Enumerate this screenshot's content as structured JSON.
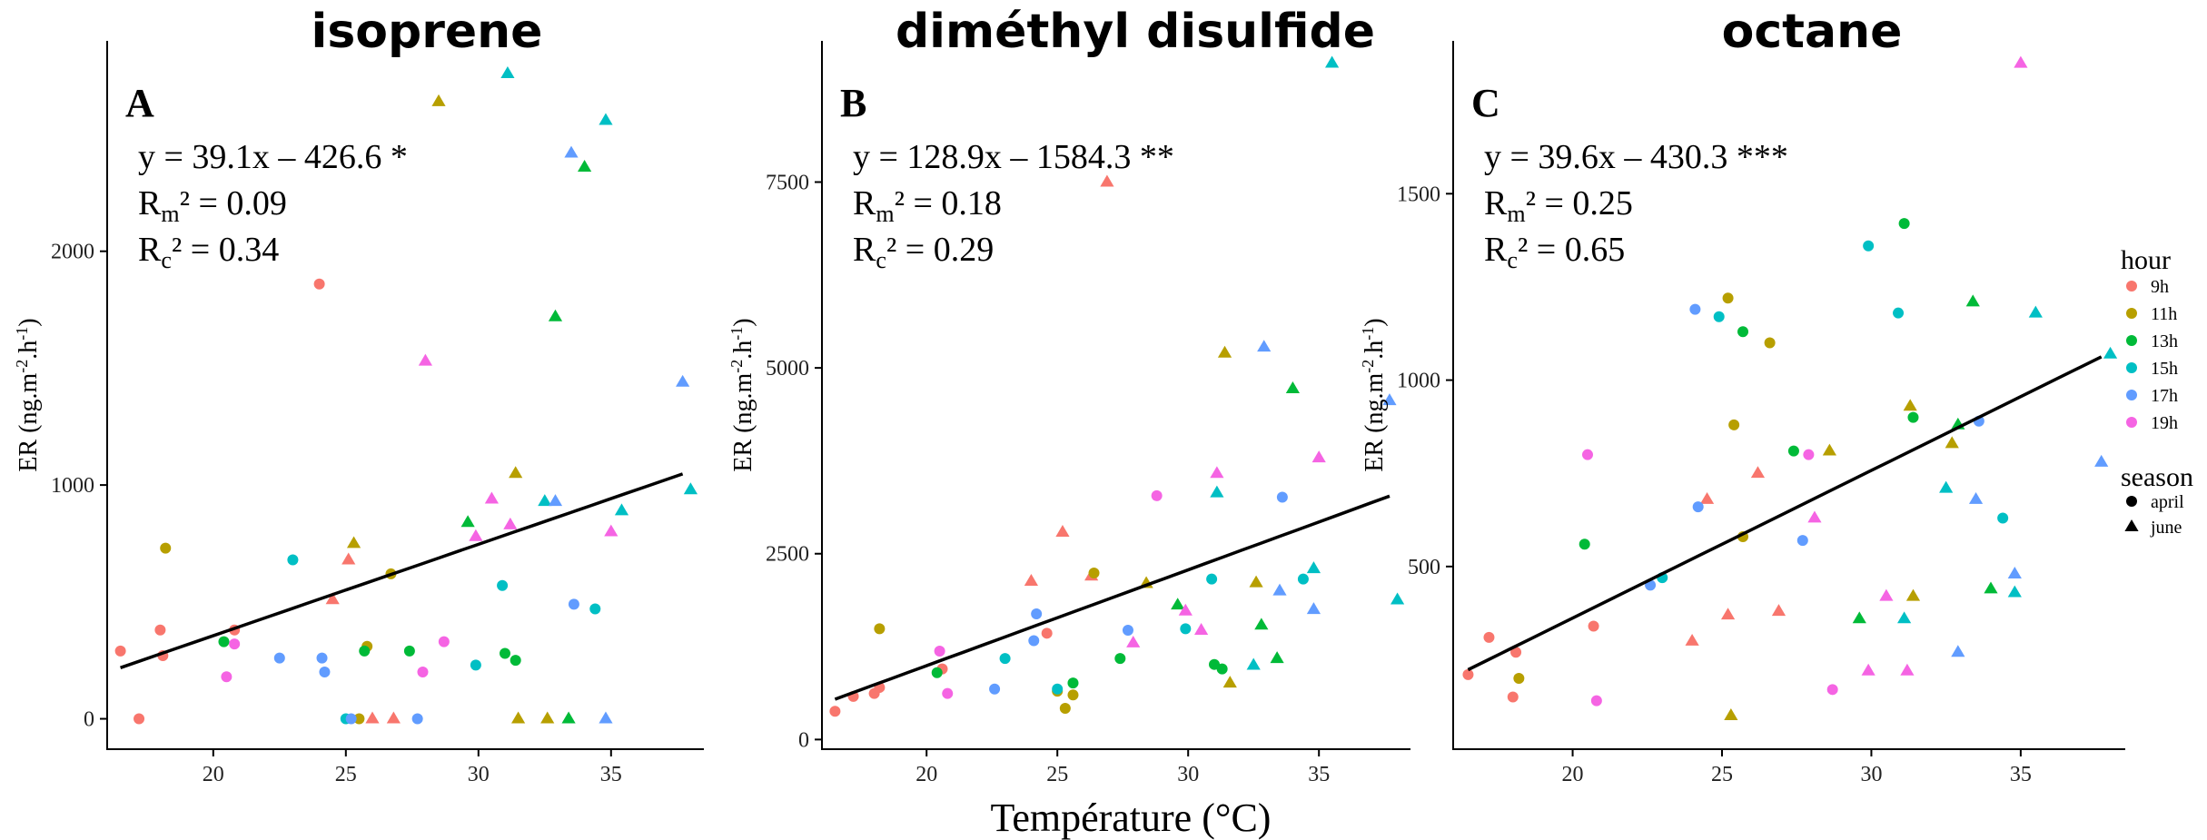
{
  "chart_data": {
    "xlabel": "Température (°C)",
    "legend": {
      "placement": "right",
      "hour": {
        "title": "hour",
        "items": [
          {
            "label": "9h",
            "color": "#F8766D"
          },
          {
            "label": "11h",
            "color": "#B79F00"
          },
          {
            "label": "13h",
            "color": "#00BA38"
          },
          {
            "label": "15h",
            "color": "#00BFC4"
          },
          {
            "label": "17h",
            "color": "#619CFF"
          },
          {
            "label": "19h",
            "color": "#F564E3"
          }
        ]
      },
      "season": {
        "title": "season",
        "items": [
          {
            "label": "april",
            "shape": "circle"
          },
          {
            "label": "june",
            "shape": "triangle"
          }
        ]
      }
    },
    "panels": [
      {
        "type": "scatter",
        "letter": "A",
        "title": "isoprene",
        "ylabel": "ER (ng.m-2.h-1)",
        "xlim": [
          16,
          38.5
        ],
        "ylim": [
          -130,
          2900
        ],
        "xticks": [
          20,
          25,
          30,
          35
        ],
        "yticks": [
          0,
          1000,
          2000
        ],
        "fit": {
          "slope": 39.1,
          "intercept": -426.6,
          "x_range": [
            16.5,
            37.7
          ]
        },
        "annotation": {
          "eq": "y = 39.1x – 426.6 *",
          "rm": "0.09",
          "rc": "0.34"
        },
        "points": [
          [
            16.5,
            290,
            "9h",
            "april"
          ],
          [
            17.2,
            0,
            "9h",
            "april"
          ],
          [
            18.0,
            380,
            "9h",
            "april"
          ],
          [
            18.1,
            270,
            "9h",
            "april"
          ],
          [
            20.8,
            380,
            "9h",
            "april"
          ],
          [
            24.0,
            1860,
            "9h",
            "april"
          ],
          [
            24.5,
            510,
            "9h",
            "june"
          ],
          [
            25.1,
            680,
            "9h",
            "june"
          ],
          [
            26.0,
            0,
            "9h",
            "june"
          ],
          [
            26.8,
            0,
            "9h",
            "june"
          ],
          [
            18.2,
            730,
            "11h",
            "april"
          ],
          [
            25.3,
            750,
            "11h",
            "june"
          ],
          [
            25.5,
            0,
            "11h",
            "april"
          ],
          [
            25.8,
            310,
            "11h",
            "april"
          ],
          [
            26.7,
            620,
            "11h",
            "april"
          ],
          [
            28.5,
            2640,
            "11h",
            "june"
          ],
          [
            31.4,
            1050,
            "11h",
            "june"
          ],
          [
            31.5,
            0,
            "11h",
            "june"
          ],
          [
            32.6,
            0,
            "11h",
            "june"
          ],
          [
            20.4,
            330,
            "13h",
            "april"
          ],
          [
            25.7,
            290,
            "13h",
            "april"
          ],
          [
            27.4,
            290,
            "13h",
            "april"
          ],
          [
            29.6,
            840,
            "13h",
            "june"
          ],
          [
            31.0,
            280,
            "13h",
            "april"
          ],
          [
            31.4,
            250,
            "13h",
            "april"
          ],
          [
            32.9,
            1720,
            "13h",
            "june"
          ],
          [
            33.4,
            0,
            "13h",
            "june"
          ],
          [
            34.0,
            2360,
            "13h",
            "june"
          ],
          [
            23.0,
            680,
            "15h",
            "april"
          ],
          [
            25.0,
            0,
            "15h",
            "april"
          ],
          [
            29.9,
            230,
            "15h",
            "april"
          ],
          [
            30.9,
            570,
            "15h",
            "april"
          ],
          [
            31.1,
            2760,
            "15h",
            "june"
          ],
          [
            32.5,
            930,
            "15h",
            "june"
          ],
          [
            34.4,
            470,
            "15h",
            "april"
          ],
          [
            34.8,
            2560,
            "15h",
            "june"
          ],
          [
            35.4,
            890,
            "15h",
            "june"
          ],
          [
            38.0,
            980,
            "15h",
            "june"
          ],
          [
            22.5,
            260,
            "17h",
            "april"
          ],
          [
            24.1,
            260,
            "17h",
            "april"
          ],
          [
            24.2,
            200,
            "17h",
            "april"
          ],
          [
            25.2,
            0,
            "17h",
            "april"
          ],
          [
            27.7,
            0,
            "17h",
            "april"
          ],
          [
            32.9,
            930,
            "17h",
            "june"
          ],
          [
            33.6,
            490,
            "17h",
            "april"
          ],
          [
            33.5,
            2420,
            "17h",
            "june"
          ],
          [
            34.8,
            0,
            "17h",
            "june"
          ],
          [
            37.7,
            1440,
            "17h",
            "june"
          ],
          [
            20.5,
            180,
            "19h",
            "april"
          ],
          [
            20.8,
            320,
            "19h",
            "april"
          ],
          [
            27.9,
            200,
            "19h",
            "april"
          ],
          [
            28.0,
            1530,
            "19h",
            "june"
          ],
          [
            28.7,
            330,
            "19h",
            "april"
          ],
          [
            29.9,
            780,
            "19h",
            "june"
          ],
          [
            30.5,
            940,
            "19h",
            "june"
          ],
          [
            31.2,
            830,
            "19h",
            "june"
          ],
          [
            35.0,
            800,
            "19h",
            "june"
          ]
        ]
      },
      {
        "type": "scatter",
        "letter": "B",
        "title": "diméthyl disulfide",
        "ylabel": "ER (ng.m-2.h-1)",
        "xlim": [
          16,
          38.5
        ],
        "ylim": [
          -130,
          9400
        ],
        "xticks": [
          20,
          25,
          30,
          35
        ],
        "yticks": [
          0,
          2500,
          5000,
          7500
        ],
        "fit": {
          "slope": 128.9,
          "intercept": -1584.3,
          "x_range": [
            16.5,
            37.7
          ]
        },
        "annotation": {
          "eq": "y = 128.9x – 1584.3 **",
          "rm": "0.18",
          "rc": "0.29"
        },
        "points": [
          [
            16.5,
            380,
            "9h",
            "april"
          ],
          [
            17.2,
            580,
            "9h",
            "april"
          ],
          [
            18.0,
            620,
            "9h",
            "april"
          ],
          [
            18.2,
            700,
            "9h",
            "april"
          ],
          [
            20.6,
            950,
            "9h",
            "april"
          ],
          [
            24.0,
            2130,
            "9h",
            "june"
          ],
          [
            24.6,
            1430,
            "9h",
            "april"
          ],
          [
            25.2,
            2790,
            "9h",
            "june"
          ],
          [
            26.3,
            2200,
            "9h",
            "june"
          ],
          [
            26.9,
            7500,
            "9h",
            "june"
          ],
          [
            18.2,
            1490,
            "11h",
            "april"
          ],
          [
            25.0,
            650,
            "11h",
            "april"
          ],
          [
            25.3,
            420,
            "11h",
            "april"
          ],
          [
            25.6,
            600,
            "11h",
            "april"
          ],
          [
            26.4,
            2240,
            "11h",
            "april"
          ],
          [
            28.4,
            2100,
            "11h",
            "june"
          ],
          [
            31.4,
            5200,
            "11h",
            "june"
          ],
          [
            31.6,
            760,
            "11h",
            "june"
          ],
          [
            32.6,
            2110,
            "11h",
            "june"
          ],
          [
            20.4,
            900,
            "13h",
            "april"
          ],
          [
            25.6,
            760,
            "13h",
            "april"
          ],
          [
            27.4,
            1090,
            "13h",
            "april"
          ],
          [
            29.6,
            1810,
            "13h",
            "june"
          ],
          [
            31.0,
            1010,
            "13h",
            "april"
          ],
          [
            31.3,
            950,
            "13h",
            "april"
          ],
          [
            32.8,
            1540,
            "13h",
            "june"
          ],
          [
            33.4,
            1090,
            "13h",
            "june"
          ],
          [
            34.0,
            4720,
            "13h",
            "june"
          ],
          [
            23.0,
            1090,
            "15h",
            "april"
          ],
          [
            25.0,
            680,
            "15h",
            "april"
          ],
          [
            29.9,
            1490,
            "15h",
            "april"
          ],
          [
            30.9,
            2160,
            "15h",
            "april"
          ],
          [
            31.1,
            3320,
            "15h",
            "june"
          ],
          [
            32.5,
            1000,
            "15h",
            "june"
          ],
          [
            34.4,
            2160,
            "15h",
            "april"
          ],
          [
            34.8,
            2300,
            "15h",
            "june"
          ],
          [
            35.5,
            9100,
            "15h",
            "june"
          ],
          [
            38.0,
            1880,
            "15h",
            "june"
          ],
          [
            22.6,
            680,
            "17h",
            "april"
          ],
          [
            24.1,
            1330,
            "17h",
            "april"
          ],
          [
            24.2,
            1690,
            "17h",
            "april"
          ],
          [
            27.7,
            1470,
            "17h",
            "april"
          ],
          [
            32.9,
            5280,
            "17h",
            "june"
          ],
          [
            33.6,
            3260,
            "17h",
            "april"
          ],
          [
            33.5,
            2000,
            "17h",
            "june"
          ],
          [
            34.8,
            1750,
            "17h",
            "june"
          ],
          [
            37.7,
            4560,
            "17h",
            "june"
          ],
          [
            20.5,
            1190,
            "19h",
            "april"
          ],
          [
            20.8,
            620,
            "19h",
            "april"
          ],
          [
            27.9,
            1300,
            "19h",
            "june"
          ],
          [
            28.8,
            3280,
            "19h",
            "april"
          ],
          [
            29.9,
            1730,
            "19h",
            "june"
          ],
          [
            30.5,
            1470,
            "19h",
            "june"
          ],
          [
            31.1,
            3580,
            "19h",
            "june"
          ],
          [
            35.0,
            3790,
            "19h",
            "june"
          ]
        ]
      },
      {
        "type": "scatter",
        "letter": "C",
        "title": "octane",
        "ylabel": "ER (ng.m-2.h-1)",
        "xlim": [
          16,
          38.5
        ],
        "ylim": [
          10,
          1910
        ],
        "xticks": [
          20,
          25,
          30,
          35
        ],
        "yticks": [
          500,
          1000,
          1500
        ],
        "fit": {
          "slope": 39.6,
          "intercept": -430.3,
          "x_range": [
            16.5,
            37.7
          ]
        },
        "annotation": {
          "eq": "y = 39.6x – 430.3 ***",
          "rm": "0.25",
          "rc": "0.65"
        },
        "points": [
          [
            16.5,
            210,
            "9h",
            "april"
          ],
          [
            17.2,
            310,
            "9h",
            "april"
          ],
          [
            18.0,
            150,
            "9h",
            "april"
          ],
          [
            18.1,
            270,
            "9h",
            "april"
          ],
          [
            20.7,
            340,
            "9h",
            "april"
          ],
          [
            24.0,
            300,
            "9h",
            "june"
          ],
          [
            24.5,
            680,
            "9h",
            "june"
          ],
          [
            25.2,
            370,
            "9h",
            "june"
          ],
          [
            26.2,
            750,
            "9h",
            "june"
          ],
          [
            26.9,
            380,
            "9h",
            "june"
          ],
          [
            18.2,
            200,
            "11h",
            "april"
          ],
          [
            25.2,
            1220,
            "11h",
            "april"
          ],
          [
            25.4,
            880,
            "11h",
            "april"
          ],
          [
            25.7,
            580,
            "11h",
            "april"
          ],
          [
            26.6,
            1100,
            "11h",
            "april"
          ],
          [
            28.6,
            810,
            "11h",
            "june"
          ],
          [
            31.3,
            930,
            "11h",
            "june"
          ],
          [
            31.4,
            420,
            "11h",
            "june"
          ],
          [
            32.7,
            830,
            "11h",
            "june"
          ],
          [
            25.3,
            100,
            "11h",
            "june"
          ],
          [
            20.4,
            560,
            "13h",
            "april"
          ],
          [
            25.7,
            1130,
            "13h",
            "april"
          ],
          [
            27.4,
            810,
            "13h",
            "april"
          ],
          [
            29.6,
            360,
            "13h",
            "june"
          ],
          [
            31.1,
            1420,
            "13h",
            "april"
          ],
          [
            31.4,
            900,
            "13h",
            "april"
          ],
          [
            33.4,
            1210,
            "13h",
            "june"
          ],
          [
            34.0,
            440,
            "13h",
            "june"
          ],
          [
            32.9,
            880,
            "13h",
            "june"
          ],
          [
            23.0,
            470,
            "15h",
            "april"
          ],
          [
            24.9,
            1170,
            "15h",
            "april"
          ],
          [
            29.9,
            1360,
            "15h",
            "april"
          ],
          [
            30.9,
            1180,
            "15h",
            "april"
          ],
          [
            31.1,
            360,
            "15h",
            "june"
          ],
          [
            32.5,
            710,
            "15h",
            "june"
          ],
          [
            34.4,
            630,
            "15h",
            "april"
          ],
          [
            34.8,
            430,
            "15h",
            "june"
          ],
          [
            35.5,
            1180,
            "15h",
            "june"
          ],
          [
            38.0,
            1070,
            "15h",
            "june"
          ],
          [
            22.6,
            450,
            "17h",
            "april"
          ],
          [
            24.1,
            1190,
            "17h",
            "april"
          ],
          [
            24.2,
            660,
            "17h",
            "april"
          ],
          [
            27.7,
            570,
            "17h",
            "april"
          ],
          [
            32.9,
            270,
            "17h",
            "june"
          ],
          [
            33.6,
            890,
            "17h",
            "april"
          ],
          [
            33.5,
            680,
            "17h",
            "june"
          ],
          [
            34.8,
            480,
            "17h",
            "june"
          ],
          [
            37.7,
            780,
            "17h",
            "june"
          ],
          [
            20.5,
            800,
            "19h",
            "april"
          ],
          [
            20.8,
            140,
            "19h",
            "april"
          ],
          [
            27.9,
            800,
            "19h",
            "april"
          ],
          [
            28.1,
            630,
            "19h",
            "june"
          ],
          [
            28.7,
            170,
            "19h",
            "april"
          ],
          [
            29.9,
            220,
            "19h",
            "june"
          ],
          [
            30.5,
            420,
            "19h",
            "june"
          ],
          [
            31.2,
            220,
            "19h",
            "june"
          ],
          [
            35.0,
            1850,
            "19h",
            "june"
          ]
        ]
      }
    ]
  }
}
